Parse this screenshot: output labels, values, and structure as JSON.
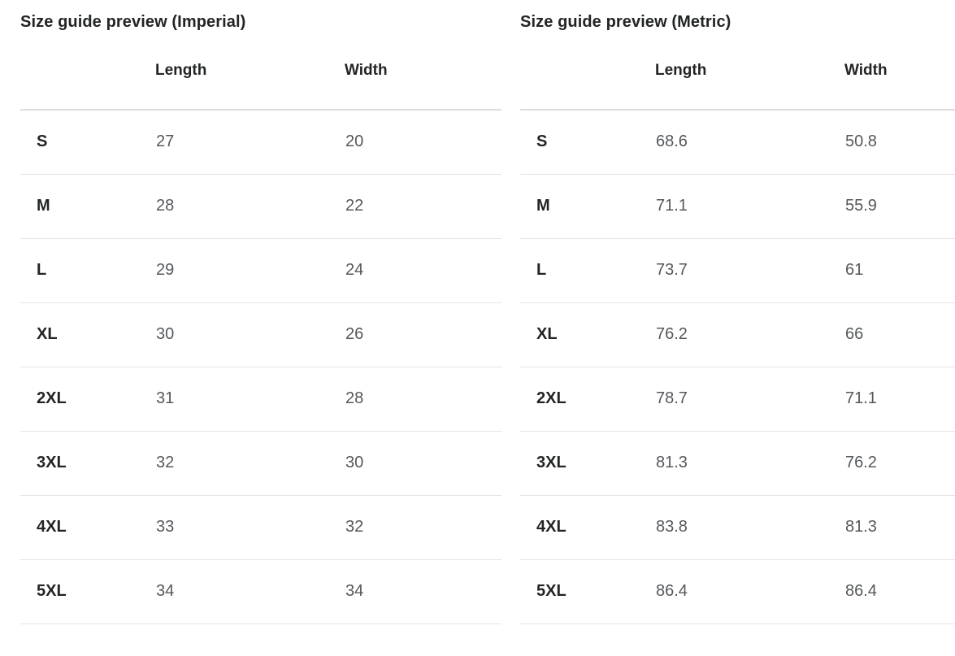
{
  "panels": [
    {
      "title": "Size guide preview (Imperial)",
      "columns": [
        "Length",
        "Width"
      ],
      "rows": [
        {
          "size": "S",
          "length": "27",
          "width": "20"
        },
        {
          "size": "M",
          "length": "28",
          "width": "22"
        },
        {
          "size": "L",
          "length": "29",
          "width": "24"
        },
        {
          "size": "XL",
          "length": "30",
          "width": "26"
        },
        {
          "size": "2XL",
          "length": "31",
          "width": "28"
        },
        {
          "size": "3XL",
          "length": "32",
          "width": "30"
        },
        {
          "size": "4XL",
          "length": "33",
          "width": "32"
        },
        {
          "size": "5XL",
          "length": "34",
          "width": "34"
        }
      ]
    },
    {
      "title": "Size guide preview (Metric)",
      "columns": [
        "Length",
        "Width"
      ],
      "rows": [
        {
          "size": "S",
          "length": "68.6",
          "width": "50.8"
        },
        {
          "size": "M",
          "length": "71.1",
          "width": "55.9"
        },
        {
          "size": "L",
          "length": "73.7",
          "width": "61"
        },
        {
          "size": "XL",
          "length": "76.2",
          "width": "66"
        },
        {
          "size": "2XL",
          "length": "78.7",
          "width": "71.1"
        },
        {
          "size": "3XL",
          "length": "81.3",
          "width": "76.2"
        },
        {
          "size": "4XL",
          "length": "83.8",
          "width": "81.3"
        },
        {
          "size": "5XL",
          "length": "86.4",
          "width": "86.4"
        }
      ]
    }
  ],
  "colors": {
    "text_dark": "#222426",
    "text_muted": "#55585b",
    "border_row": "#e5e5e5",
    "border_header": "#dedede",
    "background": "#ffffff"
  }
}
